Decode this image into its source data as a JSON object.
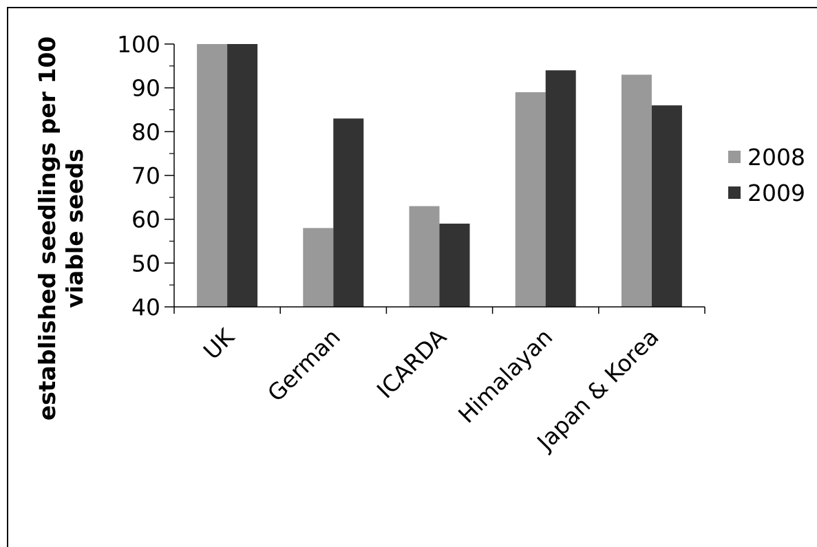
{
  "chart_data": {
    "type": "bar",
    "categories": [
      "UK",
      "German",
      "ICARDA",
      "Himalayan",
      "Japan & Korea"
    ],
    "series": [
      {
        "name": "2008",
        "color": "#999999",
        "values": [
          100,
          58,
          63,
          89,
          93
        ]
      },
      {
        "name": "2009",
        "color": "#333333",
        "values": [
          100,
          83,
          59,
          94,
          86
        ]
      }
    ],
    "ylabel_lines": [
      "established seedlings per 100",
      "viable seeds"
    ],
    "ylim": [
      40,
      100
    ],
    "yticks": [
      "40",
      "50",
      "60",
      "70",
      "80",
      "90",
      "100"
    ],
    "ytick_values": [
      40,
      50,
      60,
      70,
      80,
      90,
      100
    ],
    "grid": false,
    "legend_position": "right"
  }
}
